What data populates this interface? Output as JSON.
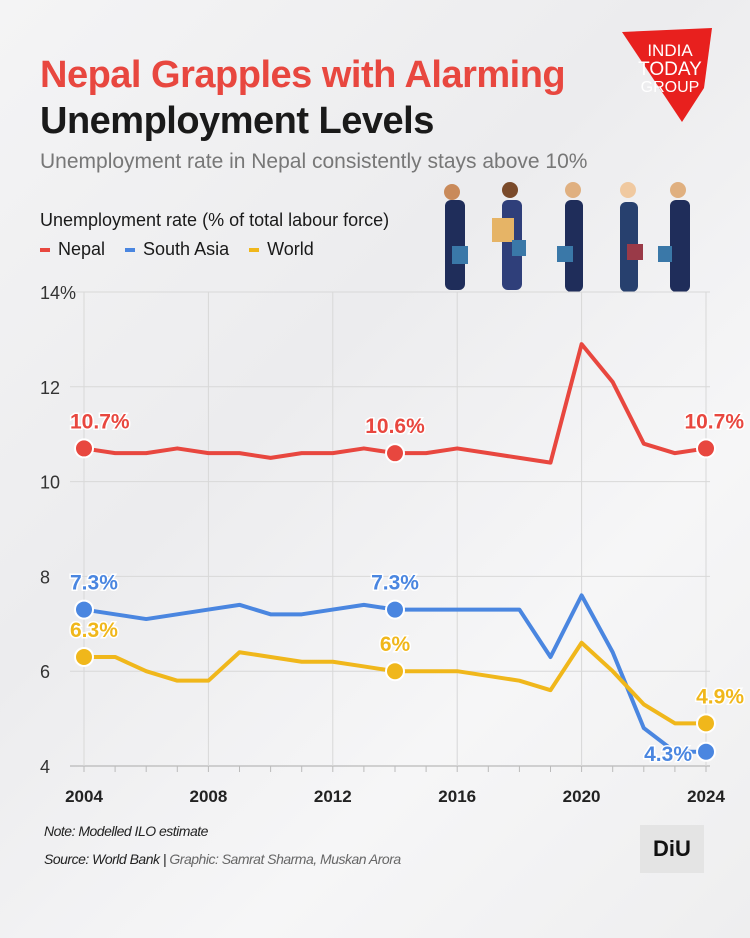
{
  "header": {
    "title_line1": "Nepal Grapples with Alarming",
    "title_line2": "Unemployment Levels",
    "subtitle": "Unemployment rate in Nepal consistently stays above 10%",
    "logo_text": "INDIA TODAY GROUP"
  },
  "footer": {
    "note": "Note: Modelled ILO estimate",
    "source": "Source: World Bank",
    "separator": "|",
    "graphic": "Graphic: Samrat Sharma, Muskan Arora",
    "badge_logo": "DiU"
  },
  "chart_data": {
    "type": "line",
    "title": "Unemployment rate (% of total labour force)",
    "x": [
      2004,
      2005,
      2006,
      2007,
      2008,
      2009,
      2010,
      2011,
      2012,
      2013,
      2014,
      2015,
      2016,
      2017,
      2018,
      2019,
      2020,
      2021,
      2022,
      2023,
      2024
    ],
    "xticks": [
      "2004",
      "2008",
      "2012",
      "2016",
      "2020",
      "2024"
    ],
    "yticks": [
      "4",
      "6",
      "8",
      "10",
      "12",
      "14%"
    ],
    "ylim": [
      4,
      14
    ],
    "grid": true,
    "legend_position": "top-left",
    "series": [
      {
        "name": "Nepal",
        "color": "#e8473f",
        "values": [
          10.7,
          10.6,
          10.6,
          10.7,
          10.6,
          10.6,
          10.5,
          10.6,
          10.6,
          10.7,
          10.6,
          10.6,
          10.7,
          10.6,
          10.5,
          10.4,
          12.9,
          12.1,
          10.8,
          10.6,
          10.7
        ],
        "labels": [
          {
            "x": 2004,
            "text": "10.7%"
          },
          {
            "x": 2014,
            "text": "10.6%"
          },
          {
            "x": 2024,
            "text": "10.7%"
          }
        ]
      },
      {
        "name": "South Asia",
        "color": "#4a86e0",
        "values": [
          7.3,
          7.2,
          7.1,
          7.2,
          7.3,
          7.4,
          7.2,
          7.2,
          7.3,
          7.4,
          7.3,
          7.3,
          7.3,
          7.3,
          7.3,
          6.3,
          7.6,
          6.4,
          4.8,
          4.3,
          4.3
        ],
        "labels": [
          {
            "x": 2004,
            "text": "7.3%"
          },
          {
            "x": 2014,
            "text": "7.3%"
          },
          {
            "x": 2024,
            "text": "4.3%"
          }
        ]
      },
      {
        "name": "World",
        "color": "#f0b71b",
        "values": [
          6.3,
          6.3,
          6.0,
          5.8,
          5.8,
          6.4,
          6.3,
          6.2,
          6.2,
          6.1,
          6.0,
          6.0,
          6.0,
          5.9,
          5.8,
          5.6,
          6.6,
          6.0,
          5.3,
          4.9,
          4.9
        ],
        "labels": [
          {
            "x": 2004,
            "text": "6.3%"
          },
          {
            "x": 2014,
            "text": "6%"
          },
          {
            "x": 2024,
            "text": "4.9%"
          }
        ]
      }
    ]
  }
}
